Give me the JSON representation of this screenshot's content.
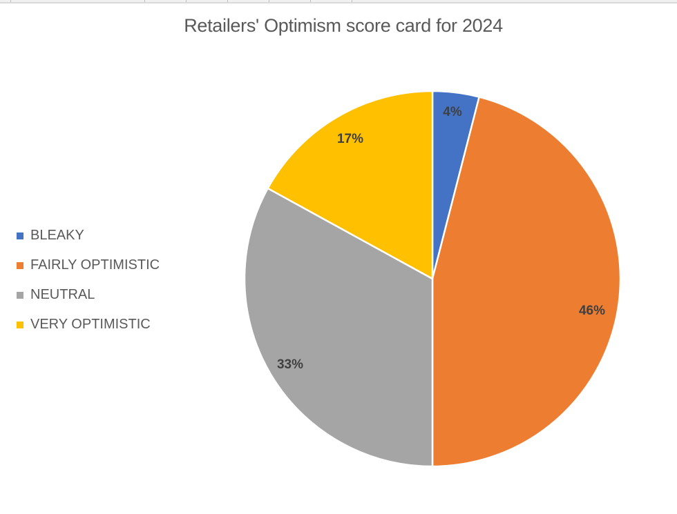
{
  "chart_data": {
    "type": "pie",
    "title": "Retailers' Optimism score card for 2024",
    "categories": [
      "BLEAKY",
      "FAIRLY OPTIMISTIC",
      "NEUTRAL",
      "VERY OPTIMISTIC"
    ],
    "values": [
      4,
      46,
      33,
      17
    ],
    "data_labels": [
      "4%",
      "46%",
      "33%",
      "17%"
    ],
    "colors": [
      "#4472C4",
      "#ED7D31",
      "#A5A5A5",
      "#FFC000"
    ],
    "legend_position": "left",
    "start_angle_deg": 0,
    "direction": "clockwise"
  },
  "legend": {
    "items": [
      {
        "label": "BLEAKY",
        "color": "#4472C4"
      },
      {
        "label": "FAIRLY OPTIMISTIC",
        "color": "#ED7D31"
      },
      {
        "label": "NEUTRAL",
        "color": "#A5A5A5"
      },
      {
        "label": "VERY OPTIMISTIC",
        "color": "#FFC000"
      }
    ]
  },
  "labels": {
    "bleaky": "4%",
    "fairly": "46%",
    "neutral": "33%",
    "very": "17%"
  }
}
